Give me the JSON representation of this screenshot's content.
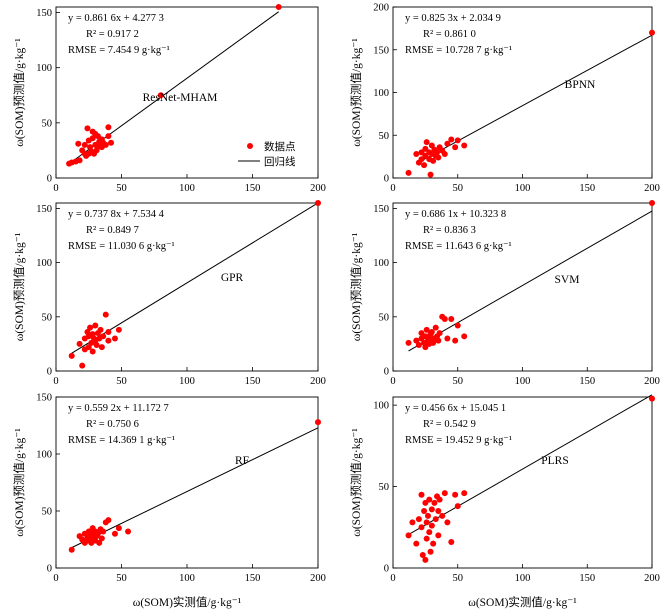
{
  "figure": {
    "xlabel": "ω(SOM)实测值/g·kg⁻¹",
    "ylabel": "ω(SOM)预测值/g·kg⁻¹",
    "legend": {
      "points_label": "数据点",
      "line_label": "回归线",
      "point_color": "#ff0000",
      "line_color": "#000000"
    }
  },
  "chart_data": [
    {
      "type": "scatter",
      "model": "ResNet-MHAM",
      "equation": "y = 0.861 6x + 4.277 3",
      "r2": "R² = 0.917 2",
      "rmse": "RMSE = 7.454 9 g·kg⁻¹",
      "slope": 0.8616,
      "intercept": 4.2773,
      "line_x": [
        10,
        170
      ],
      "xlim": [
        0,
        200
      ],
      "ylim": [
        0,
        155
      ],
      "xticks": [
        0,
        50,
        100,
        150,
        200
      ],
      "yticks": [
        0,
        50,
        100,
        150
      ],
      "has_legend": true,
      "x": [
        10,
        12,
        15,
        17,
        18,
        20,
        22,
        22,
        23,
        24,
        25,
        25,
        26,
        27,
        28,
        28,
        29,
        30,
        30,
        31,
        32,
        32,
        33,
        34,
        35,
        35,
        36,
        38,
        40,
        40,
        42,
        80,
        170
      ],
      "y": [
        13,
        14,
        15,
        31,
        16,
        25,
        22,
        30,
        20,
        45,
        22,
        34,
        28,
        24,
        36,
        42,
        22,
        30,
        40,
        25,
        28,
        38,
        33,
        30,
        35,
        28,
        32,
        30,
        46,
        38,
        32,
        75,
        155
      ]
    },
    {
      "type": "scatter",
      "model": "BPNN",
      "equation": "y = 0.825 3x + 2.034 9",
      "r2": "R² = 0.861 0",
      "rmse": "RMSE = 10.728 7 g·kg⁻¹",
      "slope": 0.8253,
      "intercept": 2.0349,
      "line_x": [
        20,
        200
      ],
      "xlim": [
        0,
        200
      ],
      "ylim": [
        0,
        200
      ],
      "xticks": [
        0,
        50,
        100,
        150,
        200
      ],
      "yticks": [
        0,
        50,
        100,
        150,
        200
      ],
      "has_legend": false,
      "x": [
        12,
        18,
        20,
        22,
        22,
        24,
        25,
        25,
        26,
        28,
        28,
        29,
        30,
        30,
        31,
        32,
        33,
        34,
        35,
        36,
        38,
        40,
        42,
        45,
        48,
        50,
        55,
        200
      ],
      "y": [
        6,
        28,
        18,
        22,
        30,
        15,
        34,
        26,
        42,
        22,
        30,
        4,
        38,
        28,
        20,
        33,
        26,
        30,
        24,
        36,
        32,
        28,
        40,
        45,
        36,
        44,
        38,
        170
      ]
    },
    {
      "type": "scatter",
      "model": "GPR",
      "equation": "y = 0.737 8x + 7.534 4",
      "r2": "R² = 0.849 7",
      "rmse": "RMSE = 11.030 6 g·kg⁻¹",
      "slope": 0.7378,
      "intercept": 7.5344,
      "line_x": [
        10,
        200
      ],
      "xlim": [
        0,
        200
      ],
      "ylim": [
        0,
        155
      ],
      "xticks": [
        0,
        50,
        100,
        150,
        200
      ],
      "yticks": [
        0,
        50,
        100,
        150
      ],
      "has_legend": false,
      "x": [
        12,
        18,
        20,
        22,
        22,
        24,
        25,
        25,
        26,
        27,
        28,
        28,
        29,
        30,
        30,
        31,
        32,
        33,
        34,
        35,
        36,
        38,
        40,
        40,
        45,
        48,
        200
      ],
      "y": [
        14,
        25,
        5,
        30,
        20,
        36,
        22,
        32,
        40,
        26,
        34,
        18,
        30,
        28,
        42,
        24,
        35,
        30,
        38,
        22,
        32,
        52,
        36,
        28,
        30,
        38,
        155
      ]
    },
    {
      "type": "scatter",
      "model": "SVM",
      "equation": "y = 0.686 1x + 10.323 8",
      "r2": "R² = 0.836 3",
      "rmse": "RMSE = 11.643 6 g·kg⁻¹",
      "slope": 0.6861,
      "intercept": 10.3238,
      "line_x": [
        12,
        200
      ],
      "xlim": [
        0,
        200
      ],
      "ylim": [
        0,
        155
      ],
      "xticks": [
        0,
        50,
        100,
        150,
        200
      ],
      "yticks": [
        0,
        50,
        100,
        150
      ],
      "has_legend": false,
      "x": [
        12,
        18,
        20,
        22,
        22,
        24,
        25,
        25,
        26,
        27,
        28,
        28,
        29,
        30,
        30,
        31,
        32,
        33,
        34,
        35,
        36,
        38,
        40,
        42,
        45,
        48,
        50,
        55,
        200
      ],
      "y": [
        26,
        28,
        24,
        30,
        35,
        26,
        32,
        22,
        38,
        28,
        30,
        25,
        34,
        28,
        36,
        26,
        30,
        40,
        32,
        28,
        35,
        50,
        48,
        30,
        48,
        28,
        42,
        32,
        155
      ]
    },
    {
      "type": "scatter",
      "model": "RF",
      "equation": "y = 0.559 2x + 11.172 7",
      "r2": "R² = 0.750 6",
      "rmse": "RMSE = 14.369 1 g·kg⁻¹",
      "slope": 0.5592,
      "intercept": 11.1727,
      "line_x": [
        12,
        200
      ],
      "xlim": [
        0,
        200
      ],
      "ylim": [
        0,
        150
      ],
      "xticks": [
        0,
        50,
        100,
        150,
        200
      ],
      "yticks": [
        0,
        50,
        100,
        150
      ],
      "has_legend": false,
      "x": [
        12,
        18,
        20,
        22,
        22,
        24,
        25,
        25,
        26,
        27,
        28,
        28,
        29,
        30,
        30,
        31,
        32,
        33,
        34,
        35,
        36,
        38,
        40,
        45,
        48,
        55,
        200
      ],
      "y": [
        16,
        28,
        25,
        22,
        30,
        26,
        24,
        32,
        28,
        22,
        30,
        35,
        26,
        24,
        32,
        28,
        30,
        22,
        34,
        26,
        32,
        40,
        42,
        30,
        35,
        32,
        128
      ]
    },
    {
      "type": "scatter",
      "model": "PLRS",
      "equation": "y = 0.456 6x + 15.045 1",
      "r2": "R² = 0.542 9",
      "rmse": "RMSE = 19.452 9 g·kg⁻¹",
      "slope": 0.4566,
      "intercept": 15.0451,
      "line_x": [
        12,
        200
      ],
      "xlim": [
        0,
        200
      ],
      "ylim": [
        0,
        105
      ],
      "xticks": [
        0,
        50,
        100,
        150,
        200
      ],
      "yticks": [
        0,
        50,
        100
      ],
      "has_legend": false,
      "x": [
        12,
        15,
        18,
        20,
        22,
        22,
        23,
        24,
        25,
        25,
        26,
        26,
        27,
        28,
        28,
        29,
        30,
        30,
        31,
        32,
        33,
        34,
        35,
        35,
        36,
        38,
        40,
        42,
        45,
        48,
        50,
        55,
        200
      ],
      "y": [
        20,
        28,
        15,
        30,
        25,
        45,
        8,
        35,
        5,
        40,
        28,
        18,
        32,
        22,
        42,
        10,
        36,
        26,
        15,
        40,
        30,
        44,
        20,
        35,
        42,
        32,
        46,
        28,
        16,
        45,
        38,
        46,
        104
      ]
    }
  ]
}
